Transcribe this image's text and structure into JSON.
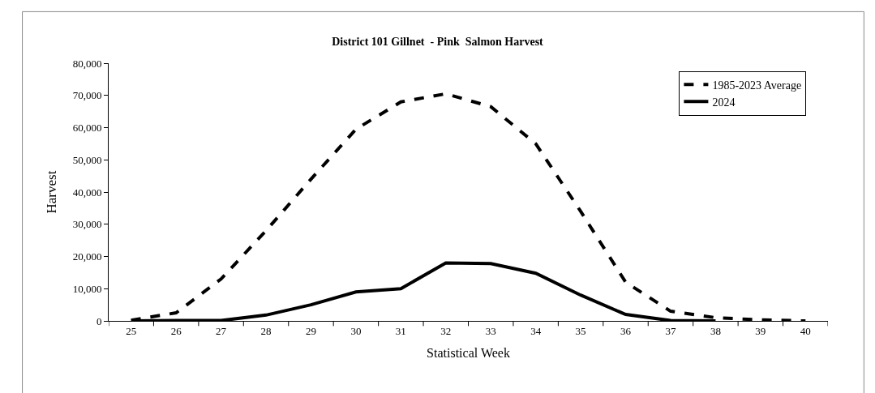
{
  "chart_data": {
    "type": "line",
    "title": "District 101 Gillnet  - Pink  Salmon Harvest",
    "xlabel": "Statistical Week",
    "ylabel": "Harvest",
    "categories": [
      "25",
      "26",
      "27",
      "28",
      "29",
      "30",
      "31",
      "32",
      "33",
      "34",
      "35",
      "36",
      "37",
      "38",
      "39",
      "40"
    ],
    "series": [
      {
        "name": "1985-2023 Average",
        "color": "#000000",
        "line_style": "dashed",
        "values": [
          200,
          2500,
          13000,
          28000,
          44000,
          59500,
          68000,
          70500,
          66500,
          55000,
          34000,
          12000,
          3000,
          1000,
          300,
          0
        ]
      },
      {
        "name": "2024",
        "color": "#000000",
        "line_style": "solid",
        "values": [
          0,
          100,
          100,
          1800,
          5000,
          9000,
          10000,
          18000,
          17800,
          14800,
          8000,
          2000,
          100,
          0,
          null,
          null
        ]
      }
    ],
    "ylim": [
      0,
      80000
    ],
    "yticks": [
      {
        "value": 0,
        "label": "0"
      },
      {
        "value": 10000,
        "label": "10,000"
      },
      {
        "value": 20000,
        "label": "20,000"
      },
      {
        "value": 30000,
        "label": "30,000"
      },
      {
        "value": 40000,
        "label": "40,000"
      },
      {
        "value": 50000,
        "label": "50,000"
      },
      {
        "value": 60000,
        "label": "60,000"
      },
      {
        "value": 70000,
        "label": "70,000"
      },
      {
        "value": 80000,
        "label": "80,000"
      }
    ],
    "legend": "top right",
    "marker": "none"
  }
}
